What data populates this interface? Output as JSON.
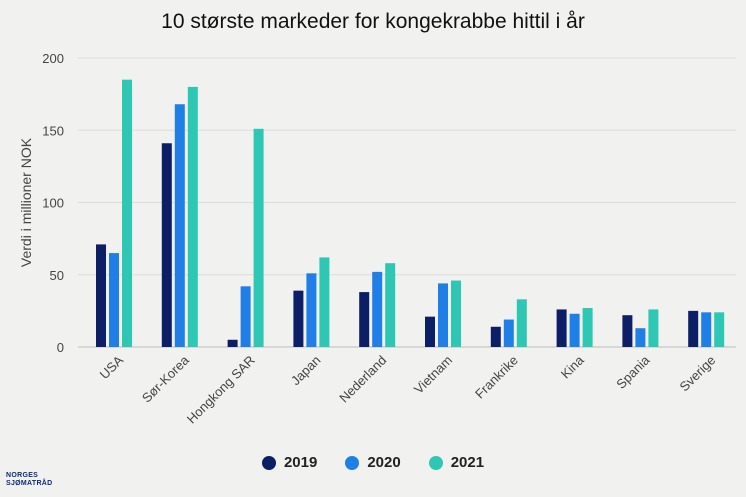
{
  "chart_data": {
    "type": "bar",
    "title": "10 største markeder for kongekrabbe hittil i år",
    "xlabel": "",
    "ylabel": "Verdi i millioner NOK",
    "ylim": [
      0,
      200
    ],
    "yticks": [
      0,
      50,
      100,
      150,
      200
    ],
    "grid": true,
    "legend_position": "bottom",
    "categories": [
      "USA",
      "Sør-Korea",
      "Hongkong SAR",
      "Japan",
      "Nederland",
      "Vietnam",
      "Frankrike",
      "Kina",
      "Spania",
      "Sverige"
    ],
    "series": [
      {
        "name": "2019",
        "color": "#0c1f66",
        "values": [
          71,
          141,
          5,
          39,
          38,
          21,
          14,
          26,
          22,
          25
        ]
      },
      {
        "name": "2020",
        "color": "#1f7fe6",
        "values": [
          65,
          168,
          42,
          51,
          52,
          44,
          19,
          23,
          13,
          24
        ]
      },
      {
        "name": "2021",
        "color": "#2ec7b3",
        "values": [
          185,
          180,
          151,
          62,
          58,
          46,
          33,
          27,
          26,
          24
        ]
      }
    ]
  },
  "logo": {
    "line1": "NORGES",
    "line2": "SJØMATRÅD"
  }
}
